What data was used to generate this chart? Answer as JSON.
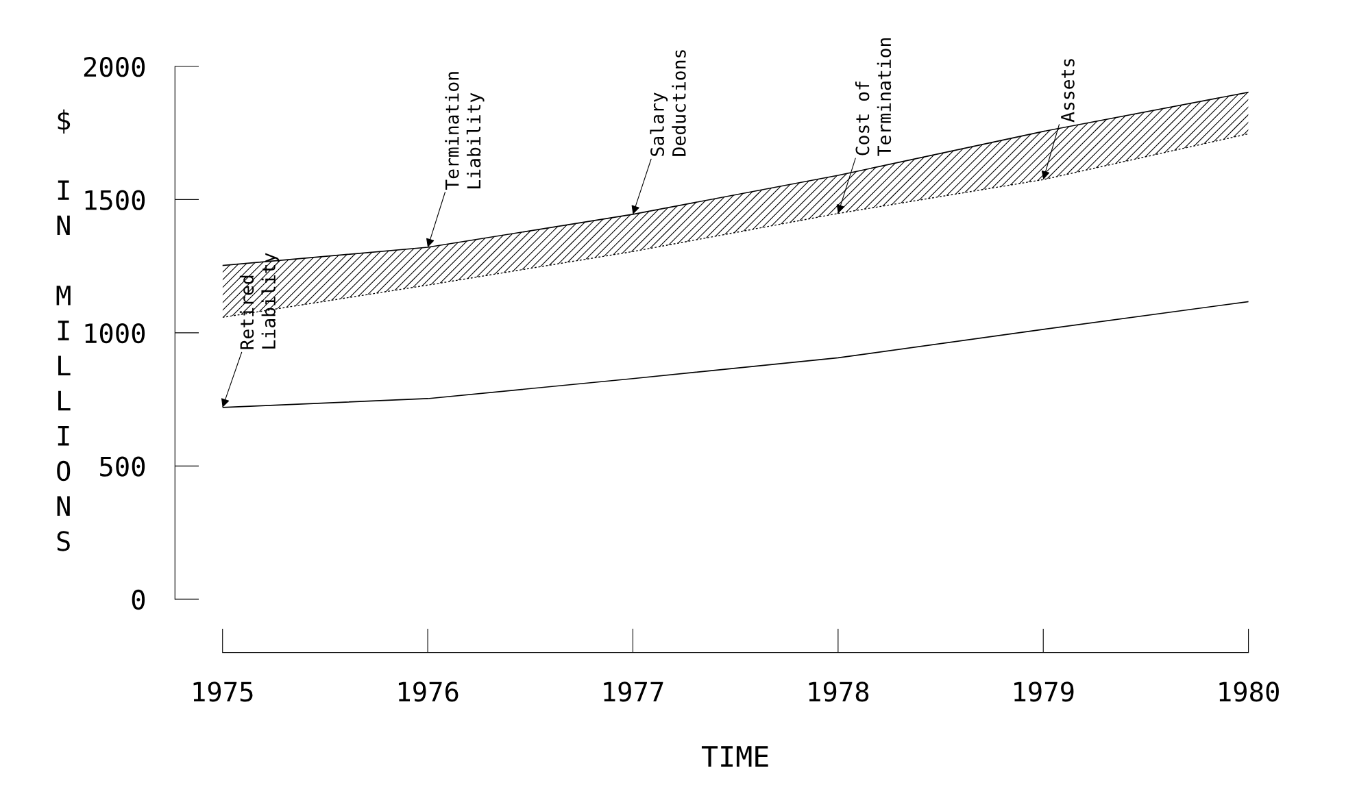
{
  "chart_data": {
    "type": "line",
    "xlabel": "TIME",
    "ylabel": "$ IN MILLIONS",
    "x": [
      1975,
      1976,
      1977,
      1978,
      1979,
      1980
    ],
    "series": [
      {
        "color": "#000000",
        "line_style": "solid",
        "values": [
          1253,
          1321,
          1445,
          1591,
          1756,
          1903
        ],
        "lower": [
          1058,
          1179,
          1305,
          1448,
          1575,
          1747
        ],
        "upper": [
          1253,
          1321,
          1445,
          1591,
          1756,
          1903
        ]
      },
      {
        "color": "#000000",
        "line_style": "solid",
        "values": [
          720,
          753,
          828,
          906,
          1013,
          1117
        ]
      }
    ],
    "annotations": [
      {
        "text": "Retired\nLiability",
        "x": 1975,
        "y": 720
      },
      {
        "text": "Termination\nLiability",
        "x": 1976,
        "y": 1321
      },
      {
        "text": "Salary\nDeductions",
        "x": 1977,
        "y": 1445
      },
      {
        "text": "Cost of\nTermination",
        "x": 1978,
        "y": 1448
      },
      {
        "text": "Assets",
        "x": 1979,
        "y": 1575
      }
    ],
    "xlim": [
      1975,
      1980
    ],
    "xticks": [
      1975,
      1976,
      1977,
      1978,
      1979,
      1980
    ],
    "ylim": [
      0,
      2000
    ],
    "yticks": [
      0,
      500,
      1000,
      1500,
      2000
    ],
    "grid": false,
    "legend": false
  }
}
